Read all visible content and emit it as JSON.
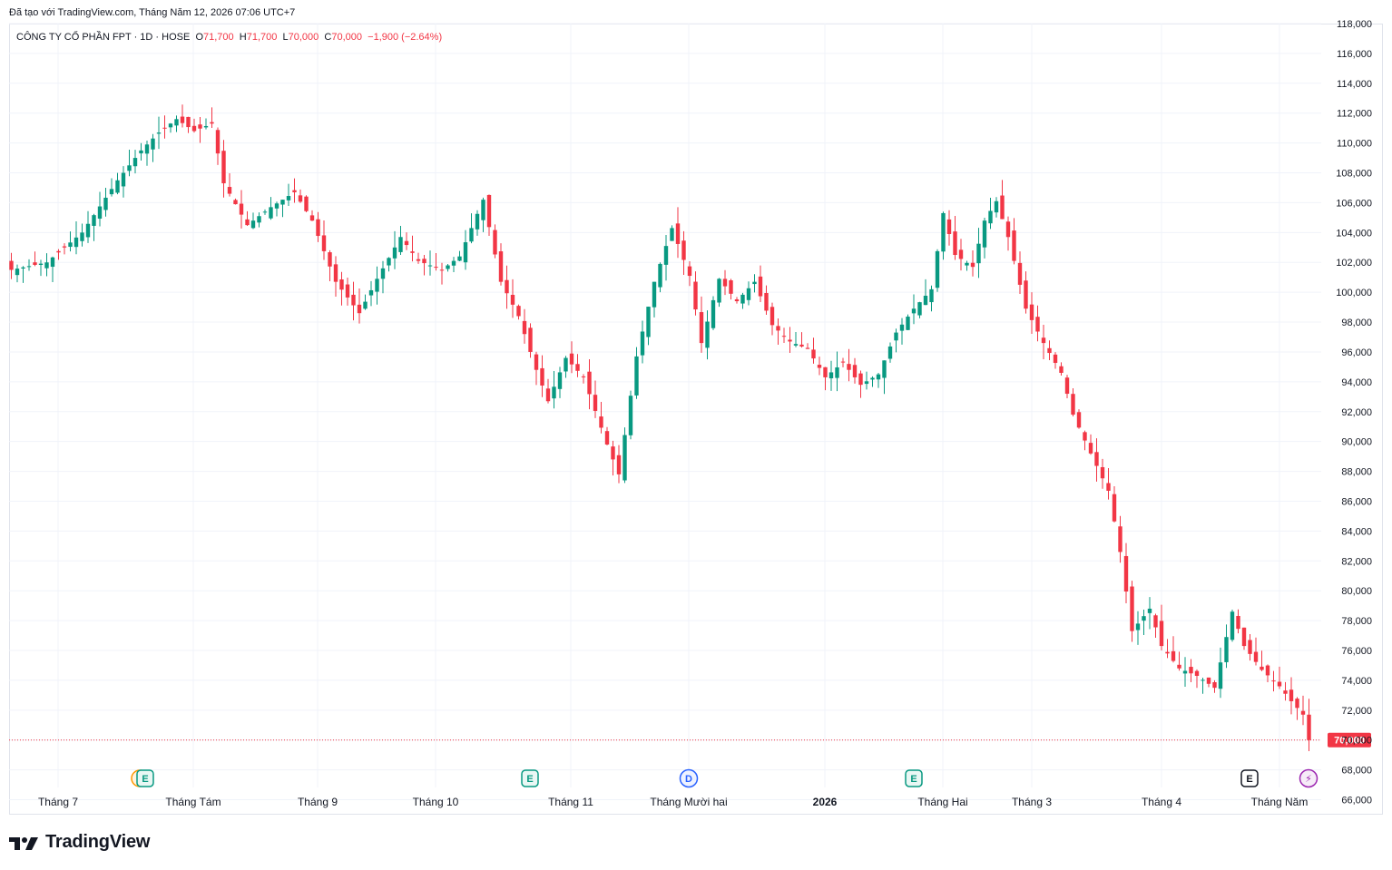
{
  "header": {
    "credit": "Đã tạo với TradingView.com, Tháng Năm 12, 2026 07:06 UTC+7"
  },
  "legend": {
    "symbol": "CÔNG TY CỔ PHẦN FPT · 1D · HOSE",
    "open_label": "O",
    "open": "71,700",
    "high_label": "H",
    "high": "71,700",
    "low_label": "L",
    "low": "70,000",
    "close_label": "C",
    "close": "70,000",
    "change": "−1,900 (−2.64%)"
  },
  "colors": {
    "up": "#089981",
    "down": "#f23645",
    "grid": "#f0f3fa",
    "text": "#131722"
  },
  "footer": {
    "brand": "TradingView"
  },
  "chart_data": {
    "type": "candlestick",
    "ylim": [
      65000,
      118000
    ],
    "grid": true,
    "y_ticks": [
      66000,
      68000,
      70000,
      72000,
      74000,
      76000,
      78000,
      80000,
      82000,
      84000,
      86000,
      88000,
      90000,
      92000,
      94000,
      96000,
      98000,
      100000,
      102000,
      104000,
      106000,
      108000,
      110000,
      112000,
      114000,
      116000,
      118000
    ],
    "x_labels": [
      {
        "label": "Tháng 7",
        "bold": false
      },
      {
        "label": "Tháng Tám",
        "bold": false
      },
      {
        "label": "Tháng 9",
        "bold": false
      },
      {
        "label": "Tháng 10",
        "bold": false
      },
      {
        "label": "Tháng 11",
        "bold": false
      },
      {
        "label": "Tháng Mười hai",
        "bold": false
      },
      {
        "label": "2026",
        "bold": true
      },
      {
        "label": "Tháng Hai",
        "bold": false
      },
      {
        "label": "Tháng 3",
        "bold": false
      },
      {
        "label": "Tháng 4",
        "bold": false
      },
      {
        "label": "Tháng Năm",
        "bold": false
      }
    ],
    "last_price": {
      "value": 70000,
      "label": "70,000"
    },
    "events": [
      {
        "type": "dividend-earnings",
        "label": "E",
        "near": "Tháng Tám"
      },
      {
        "type": "earnings",
        "label": "E",
        "near": "Tháng 11"
      },
      {
        "type": "dividend",
        "label": "D",
        "near": "Tháng Mười hai"
      },
      {
        "type": "earnings",
        "label": "E",
        "near": "Tháng Hai"
      },
      {
        "type": "earnings-upcoming",
        "label": "E",
        "near": "Tháng Năm"
      },
      {
        "type": "split",
        "label": "⚡",
        "near": "Tháng Năm"
      }
    ],
    "close_path": [
      [
        0,
        101500
      ],
      [
        6,
        102000
      ],
      [
        12,
        104000
      ],
      [
        18,
        107500
      ],
      [
        22,
        109500
      ],
      [
        25,
        110700
      ],
      [
        28,
        111600
      ],
      [
        31,
        110800
      ],
      [
        34,
        111300
      ],
      [
        36,
        107300
      ],
      [
        40,
        104500
      ],
      [
        44,
        105700
      ],
      [
        48,
        106700
      ],
      [
        51,
        104800
      ],
      [
        55,
        100700
      ],
      [
        59,
        98600
      ],
      [
        62,
        100900
      ],
      [
        66,
        103700
      ],
      [
        69,
        102100
      ],
      [
        73,
        101500
      ],
      [
        76,
        102400
      ],
      [
        80,
        106200
      ],
      [
        83,
        100700
      ],
      [
        86,
        98400
      ],
      [
        89,
        94800
      ],
      [
        91,
        92700
      ],
      [
        94,
        95600
      ],
      [
        97,
        94300
      ],
      [
        101,
        89800
      ],
      [
        103,
        87800
      ],
      [
        106,
        95700
      ],
      [
        109,
        100700
      ],
      [
        112,
        104300
      ],
      [
        115,
        101100
      ],
      [
        117,
        96600
      ],
      [
        120,
        100900
      ],
      [
        123,
        99400
      ],
      [
        126,
        100700
      ],
      [
        129,
        97800
      ],
      [
        132,
        96700
      ],
      [
        135,
        96200
      ],
      [
        138,
        94300
      ],
      [
        141,
        95300
      ],
      [
        144,
        93800
      ],
      [
        147,
        94500
      ],
      [
        150,
        97300
      ],
      [
        153,
        98900
      ],
      [
        156,
        100200
      ],
      [
        158,
        105300
      ],
      [
        160,
        102500
      ],
      [
        163,
        101700
      ],
      [
        165,
        104800
      ],
      [
        167,
        106100
      ],
      [
        169,
        103700
      ],
      [
        172,
        98900
      ],
      [
        175,
        96600
      ],
      [
        178,
        94600
      ],
      [
        180,
        91800
      ],
      [
        183,
        89200
      ],
      [
        186,
        86700
      ],
      [
        188,
        82600
      ],
      [
        190,
        77300
      ],
      [
        193,
        78800
      ],
      [
        195,
        76300
      ],
      [
        198,
        74800
      ],
      [
        201,
        74300
      ],
      [
        204,
        73500
      ],
      [
        207,
        78600
      ],
      [
        209,
        76300
      ],
      [
        212,
        74700
      ],
      [
        215,
        73600
      ],
      [
        217,
        72600
      ],
      [
        219,
        71700
      ],
      [
        220,
        70000
      ]
    ]
  }
}
